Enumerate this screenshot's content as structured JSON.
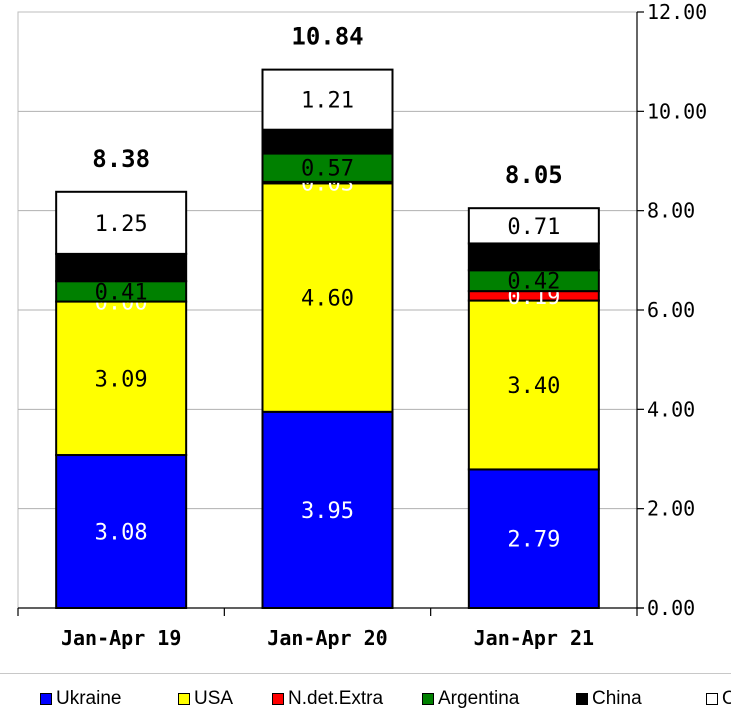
{
  "chart_data": {
    "type": "bar",
    "stacked": true,
    "categories": [
      "Jan-Apr 19",
      "Jan-Apr 20",
      "Jan-Apr 21"
    ],
    "series": [
      {
        "name": "Ukraine",
        "color": "#0000ff",
        "values": [
          3.08,
          3.95,
          2.79
        ],
        "labels": [
          "3.08",
          "3.95",
          "2.79"
        ],
        "label_color": "#ffffff"
      },
      {
        "name": "USA",
        "color": "#ffff00",
        "values": [
          3.09,
          4.6,
          3.4
        ],
        "labels": [
          "3.09",
          "4.60",
          "3.40"
        ],
        "label_color": "#000000"
      },
      {
        "name": "N.det.Extra",
        "color": "#ff0000",
        "values": [
          0.0,
          0.03,
          0.19
        ],
        "labels": [
          "0.00",
          "0.03",
          "0.19"
        ],
        "label_color": "#ffffff"
      },
      {
        "name": "Argentina",
        "color": "#008000",
        "values": [
          0.41,
          0.57,
          0.42
        ],
        "labels": [
          "0.41",
          "0.57",
          "0.42"
        ],
        "label_color": "#000000"
      },
      {
        "name": "China",
        "color": "#000000",
        "values": [
          0.55,
          0.48,
          0.54
        ],
        "labels": [
          "",
          "",
          ""
        ],
        "label_color": "#ffffff"
      },
      {
        "name": "O",
        "color": "#ffffff",
        "values": [
          1.25,
          1.21,
          0.71
        ],
        "labels": [
          "1.25",
          "1.21",
          "0.71"
        ],
        "label_color": "#000000"
      }
    ],
    "totals": [
      "8.38",
      "10.84",
      "8.05"
    ],
    "y_axis": {
      "position": "right",
      "min": 0,
      "max": 12,
      "step": 2,
      "ticks": [
        "0.00",
        "2.00",
        "4.00",
        "6.00",
        "8.00",
        "10.00",
        "12.00"
      ]
    },
    "grid": true,
    "legend_position": "bottom"
  }
}
